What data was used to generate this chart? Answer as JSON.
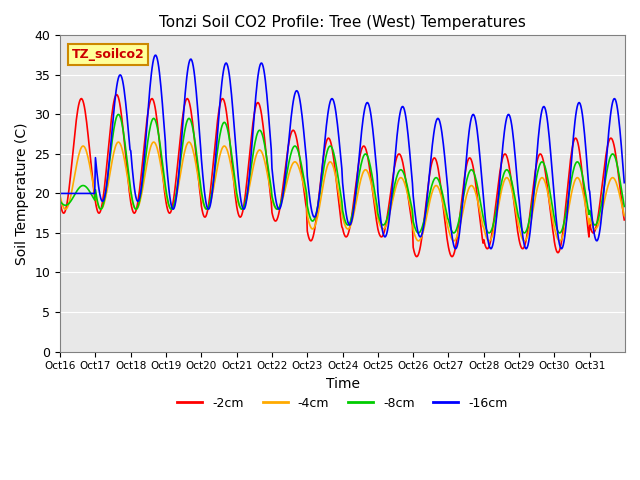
{
  "title": "Tonzi Soil CO2 Profile: Tree (West) Temperatures",
  "xlabel": "Time",
  "ylabel": "Soil Temperature (C)",
  "ylim": [
    0,
    40
  ],
  "yticks": [
    0,
    5,
    10,
    15,
    20,
    25,
    30,
    35,
    40
  ],
  "xtick_labels": [
    "Oct 16",
    "Oct 17",
    "Oct 18",
    "Oct 19",
    "Oct 20",
    "Oct 21",
    "Oct 22",
    "Oct 23",
    "Oct 24",
    "Oct 25",
    "Oct 26",
    "Oct 27",
    "Oct 28",
    "Oct 29",
    "Oct 30",
    "Oct 31"
  ],
  "legend_label": "TZ_soilco2",
  "series_labels": [
    "-2cm",
    "-4cm",
    "-8cm",
    "-16cm"
  ],
  "series_colors": [
    "#ff0000",
    "#ffaa00",
    "#00cc00",
    "#0000ff"
  ],
  "bg_color": "#e8e8e8",
  "legend_box_color": "#ffff99",
  "legend_text_color": "#cc0000",
  "peaks_red": [
    32.0,
    32.5,
    32.0,
    32.0,
    32.0,
    31.5,
    28.0,
    27.0,
    26.0,
    25.0,
    24.5,
    24.5,
    25.0,
    25.0,
    27.0,
    27.0
  ],
  "troughs_red": [
    17.5,
    17.5,
    17.5,
    17.5,
    17.0,
    17.0,
    16.5,
    14.0,
    14.5,
    14.5,
    12.0,
    12.0,
    13.0,
    13.0,
    12.5,
    15.0
  ],
  "peaks_orange": [
    26.0,
    26.5,
    26.5,
    26.5,
    26.0,
    25.5,
    24.0,
    24.0,
    23.0,
    22.0,
    21.0,
    21.0,
    22.0,
    22.0,
    22.0,
    22.0
  ],
  "troughs_orange": [
    18.0,
    18.0,
    18.0,
    18.0,
    18.0,
    18.0,
    18.0,
    15.5,
    15.5,
    15.5,
    14.0,
    14.0,
    14.0,
    14.0,
    14.0,
    15.5
  ],
  "peaks_green": [
    21.0,
    30.0,
    29.5,
    29.5,
    29.0,
    28.0,
    26.0,
    26.0,
    25.0,
    23.0,
    22.0,
    23.0,
    23.0,
    24.0,
    24.0,
    25.0
  ],
  "troughs_green": [
    18.5,
    18.0,
    18.0,
    18.0,
    18.0,
    18.0,
    18.0,
    16.5,
    16.0,
    16.0,
    15.0,
    15.0,
    15.0,
    15.0,
    15.0,
    16.0
  ],
  "peaks_blue": [
    20.0,
    35.0,
    37.5,
    37.0,
    36.5,
    36.5,
    33.0,
    32.0,
    31.5,
    31.0,
    29.5,
    30.0,
    30.0,
    31.0,
    31.5,
    32.0
  ],
  "troughs_blue": [
    20.0,
    19.0,
    19.0,
    18.0,
    18.0,
    18.0,
    18.0,
    17.0,
    16.0,
    14.5,
    14.5,
    13.0,
    13.0,
    13.0,
    13.0,
    14.0
  ]
}
